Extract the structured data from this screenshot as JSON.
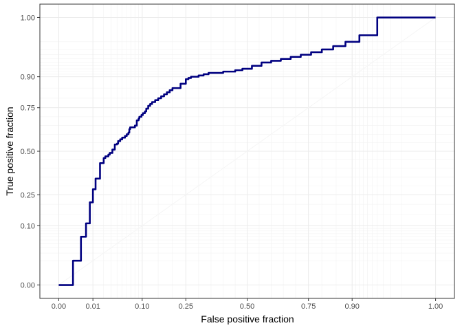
{
  "chart_data": {
    "type": "line",
    "title": "",
    "xlabel": "False positive fraction",
    "ylabel": "True positive fraction",
    "xlim": [
      -0.05,
      1.05
    ],
    "ylim": [
      -0.05,
      1.05
    ],
    "scale": "probit-like (ggplot style_roc)",
    "grid": true,
    "legend": "none",
    "colors": {
      "curve": "#000080",
      "panel_border": "#333333",
      "grid": "#ebebeb"
    },
    "x_ticks": [
      {
        "value": 0.0,
        "label": "0.00"
      },
      {
        "value": 0.01,
        "label": "0.01"
      },
      {
        "value": 0.1,
        "label": "0.10"
      },
      {
        "value": 0.25,
        "label": "0.25"
      },
      {
        "value": 0.5,
        "label": "0.50"
      },
      {
        "value": 0.75,
        "label": "0.75"
      },
      {
        "value": 0.9,
        "label": "0.90"
      },
      {
        "value": 1.0,
        "label": "1.00"
      }
    ],
    "y_ticks": [
      {
        "value": 0.0,
        "label": "0.00"
      },
      {
        "value": 0.1,
        "label": "0.10"
      },
      {
        "value": 0.25,
        "label": "0.25"
      },
      {
        "value": 0.5,
        "label": "0.50"
      },
      {
        "value": 0.75,
        "label": "0.75"
      },
      {
        "value": 0.9,
        "label": "0.90"
      },
      {
        "value": 1.0,
        "label": "1.00"
      }
    ],
    "series": [
      {
        "x": [
          0.0,
          0.002,
          0.004,
          0.004,
          0.006,
          0.006,
          0.008,
          0.008,
          0.01,
          0.012,
          0.012,
          0.016,
          0.02,
          0.02,
          0.022,
          0.026,
          0.028,
          0.032,
          0.036,
          0.036,
          0.04,
          0.042,
          0.046,
          0.05,
          0.056,
          0.06,
          0.064,
          0.066,
          0.068,
          0.08,
          0.085,
          0.09,
          0.092,
          0.098,
          0.102,
          0.108,
          0.112,
          0.118,
          0.124,
          0.13,
          0.14,
          0.15,
          0.16,
          0.17,
          0.18,
          0.19,
          0.2,
          0.21,
          0.23,
          0.24,
          0.25,
          0.26,
          0.27,
          0.3,
          0.32,
          0.34,
          0.4,
          0.45,
          0.48,
          0.52,
          0.56,
          0.6,
          0.64,
          0.68,
          0.72,
          0.76,
          0.8,
          0.84,
          0.88,
          0.92,
          0.96,
          1.0
        ],
        "y": [
          0.0,
          0.01,
          0.03,
          0.06,
          0.08,
          0.11,
          0.12,
          0.21,
          0.28,
          0.33,
          0.34,
          0.43,
          0.44,
          0.46,
          0.47,
          0.48,
          0.49,
          0.51,
          0.52,
          0.54,
          0.545,
          0.56,
          0.57,
          0.58,
          0.59,
          0.6,
          0.61,
          0.63,
          0.64,
          0.65,
          0.68,
          0.69,
          0.7,
          0.71,
          0.72,
          0.73,
          0.745,
          0.76,
          0.77,
          0.78,
          0.79,
          0.8,
          0.81,
          0.82,
          0.83,
          0.84,
          0.85,
          0.85,
          0.87,
          0.87,
          0.89,
          0.895,
          0.9,
          0.905,
          0.91,
          0.915,
          0.92,
          0.925,
          0.93,
          0.94,
          0.95,
          0.955,
          0.96,
          0.965,
          0.97,
          0.975,
          0.98,
          0.985,
          0.99,
          0.995,
          1.0,
          1.0
        ]
      }
    ]
  }
}
